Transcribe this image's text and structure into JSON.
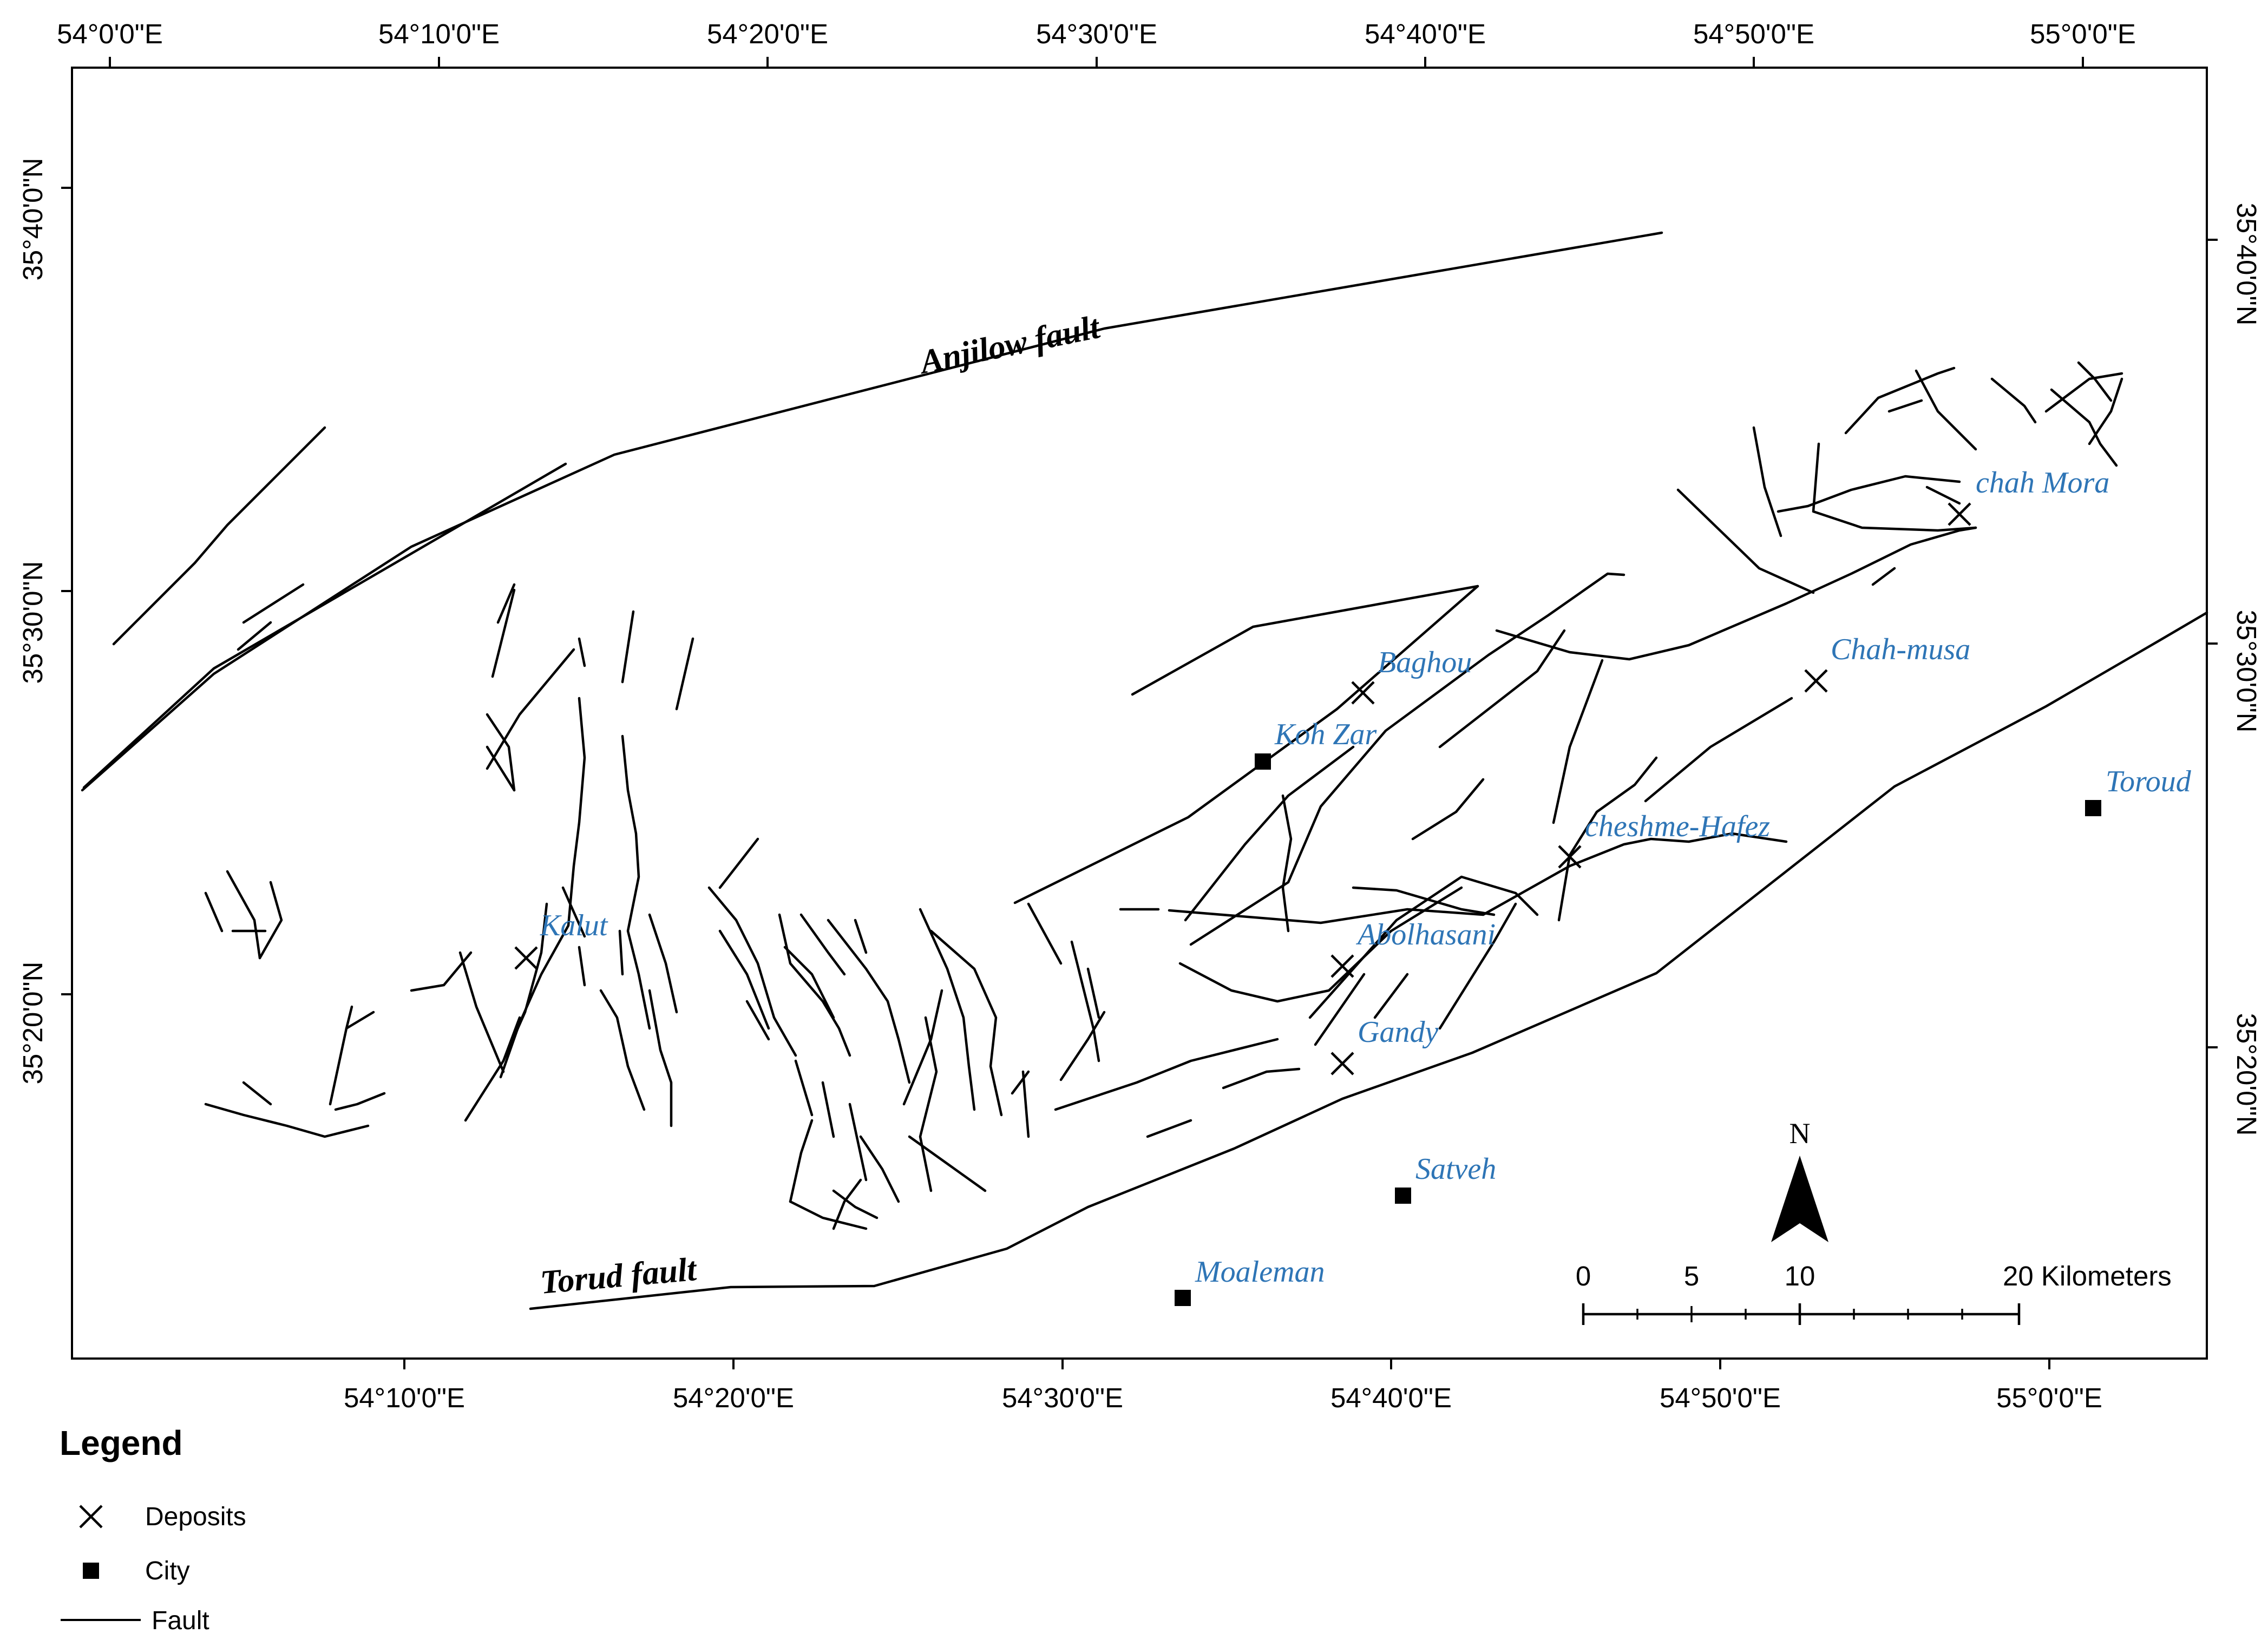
{
  "top_axis_labels": [
    "54°0'0\"E",
    "54°10'0\"E",
    "54°20'0\"E",
    "54°30'0\"E",
    "54°40'0\"E",
    "54°50'0\"E",
    "55°0'0\"E"
  ],
  "bottom_axis_labels": [
    "54°10'0\"E",
    "54°20'0\"E",
    "54°30'0\"E",
    "54°40'0\"E",
    "54°50'0\"E",
    "55°0'0\"E"
  ],
  "left_axis_labels": [
    "35°40'0\"N",
    "35°30'0\"N",
    "35°20'0\"N"
  ],
  "right_axis_labels": [
    "35°40'0\"N",
    "35°30'0\"N",
    "35°20'0\"N"
  ],
  "faults": {
    "anjilow": "Anjilow fault",
    "torud": "Torud fault"
  },
  "deposits": [
    {
      "name": "chah Mora"
    },
    {
      "name": "Chah-musa"
    },
    {
      "name": "Baghou"
    },
    {
      "name": "cheshme-Hafez"
    },
    {
      "name": "Kalut"
    },
    {
      "name": "Abolhasani"
    },
    {
      "name": "Gandy"
    }
  ],
  "cities": [
    {
      "name": "Koh Zar"
    },
    {
      "name": "Toroud"
    },
    {
      "name": "Satveh"
    },
    {
      "name": "Moaleman"
    }
  ],
  "scale_bar": {
    "ticks": [
      "0",
      "5",
      "10",
      "20 Kilometers"
    ]
  },
  "north_arrow": {
    "label": "N"
  },
  "legend": {
    "title": "Legend",
    "items": [
      {
        "symbol": "deposit",
        "label": "Deposits"
      },
      {
        "symbol": "city",
        "label": "City"
      },
      {
        "symbol": "fault",
        "label": "Fault"
      }
    ]
  },
  "colors": {
    "site_label": "#2e75b6",
    "ink": "#000000"
  }
}
